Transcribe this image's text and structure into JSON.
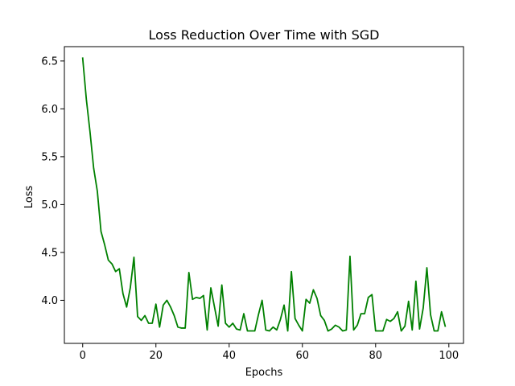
{
  "chart_data": {
    "type": "line",
    "title": "Loss Reduction Over Time with SGD",
    "xlabel": "Epochs",
    "ylabel": "Loss",
    "xlim": [
      -5,
      104
    ],
    "ylim": [
      3.55,
      6.65
    ],
    "xticks": [
      0,
      20,
      40,
      60,
      80,
      100
    ],
    "yticks": [
      4.0,
      4.5,
      5.0,
      5.5,
      6.0,
      6.5
    ],
    "xtick_labels": [
      "0",
      "20",
      "40",
      "60",
      "80",
      "100"
    ],
    "ytick_labels": [
      "4.0",
      "4.5",
      "5.0",
      "5.5",
      "6.0",
      "6.5"
    ],
    "grid": false,
    "series": [
      {
        "color": "#008000",
        "x": [
          0,
          1,
          2,
          3,
          4,
          5,
          6,
          7,
          8,
          9,
          10,
          11,
          12,
          13,
          14,
          15,
          16,
          17,
          18,
          19,
          20,
          21,
          22,
          23,
          24,
          25,
          26,
          27,
          28,
          29,
          30,
          31,
          32,
          33,
          34,
          35,
          36,
          37,
          38,
          39,
          40,
          41,
          42,
          43,
          44,
          45,
          46,
          47,
          48,
          49,
          50,
          51,
          52,
          53,
          54,
          55,
          56,
          57,
          58,
          59,
          60,
          61,
          62,
          63,
          64,
          65,
          66,
          67,
          68,
          69,
          70,
          71,
          72,
          73,
          74,
          75,
          76,
          77,
          78,
          79,
          80,
          81,
          82,
          83,
          84,
          85,
          86,
          87,
          88,
          89,
          90,
          91,
          92,
          93,
          94,
          95,
          96,
          97,
          98,
          99
        ],
        "values": [
          6.53,
          6.1,
          5.76,
          5.38,
          5.14,
          4.72,
          4.58,
          4.42,
          4.38,
          4.3,
          4.33,
          4.07,
          3.93,
          4.13,
          4.45,
          3.83,
          3.79,
          3.84,
          3.76,
          3.76,
          3.96,
          3.72,
          3.95,
          4.0,
          3.93,
          3.84,
          3.72,
          3.71,
          3.71,
          4.29,
          4.01,
          4.03,
          4.02,
          4.05,
          3.69,
          4.13,
          3.93,
          3.73,
          4.16,
          3.76,
          3.72,
          3.76,
          3.7,
          3.69,
          3.86,
          3.68,
          3.68,
          3.68,
          3.85,
          4.0,
          3.69,
          3.68,
          3.72,
          3.69,
          3.8,
          3.95,
          3.68,
          4.3,
          3.81,
          3.74,
          3.68,
          4.01,
          3.97,
          4.11,
          4.02,
          3.84,
          3.79,
          3.68,
          3.7,
          3.74,
          3.72,
          3.68,
          3.69,
          4.46,
          3.69,
          3.74,
          3.86,
          3.86,
          4.03,
          4.06,
          3.68,
          3.68,
          3.68,
          3.8,
          3.78,
          3.81,
          3.88,
          3.68,
          3.73,
          3.99,
          3.69,
          4.2,
          3.7,
          3.92,
          4.34,
          3.85,
          3.68,
          3.68,
          3.88,
          3.73
        ]
      }
    ]
  }
}
